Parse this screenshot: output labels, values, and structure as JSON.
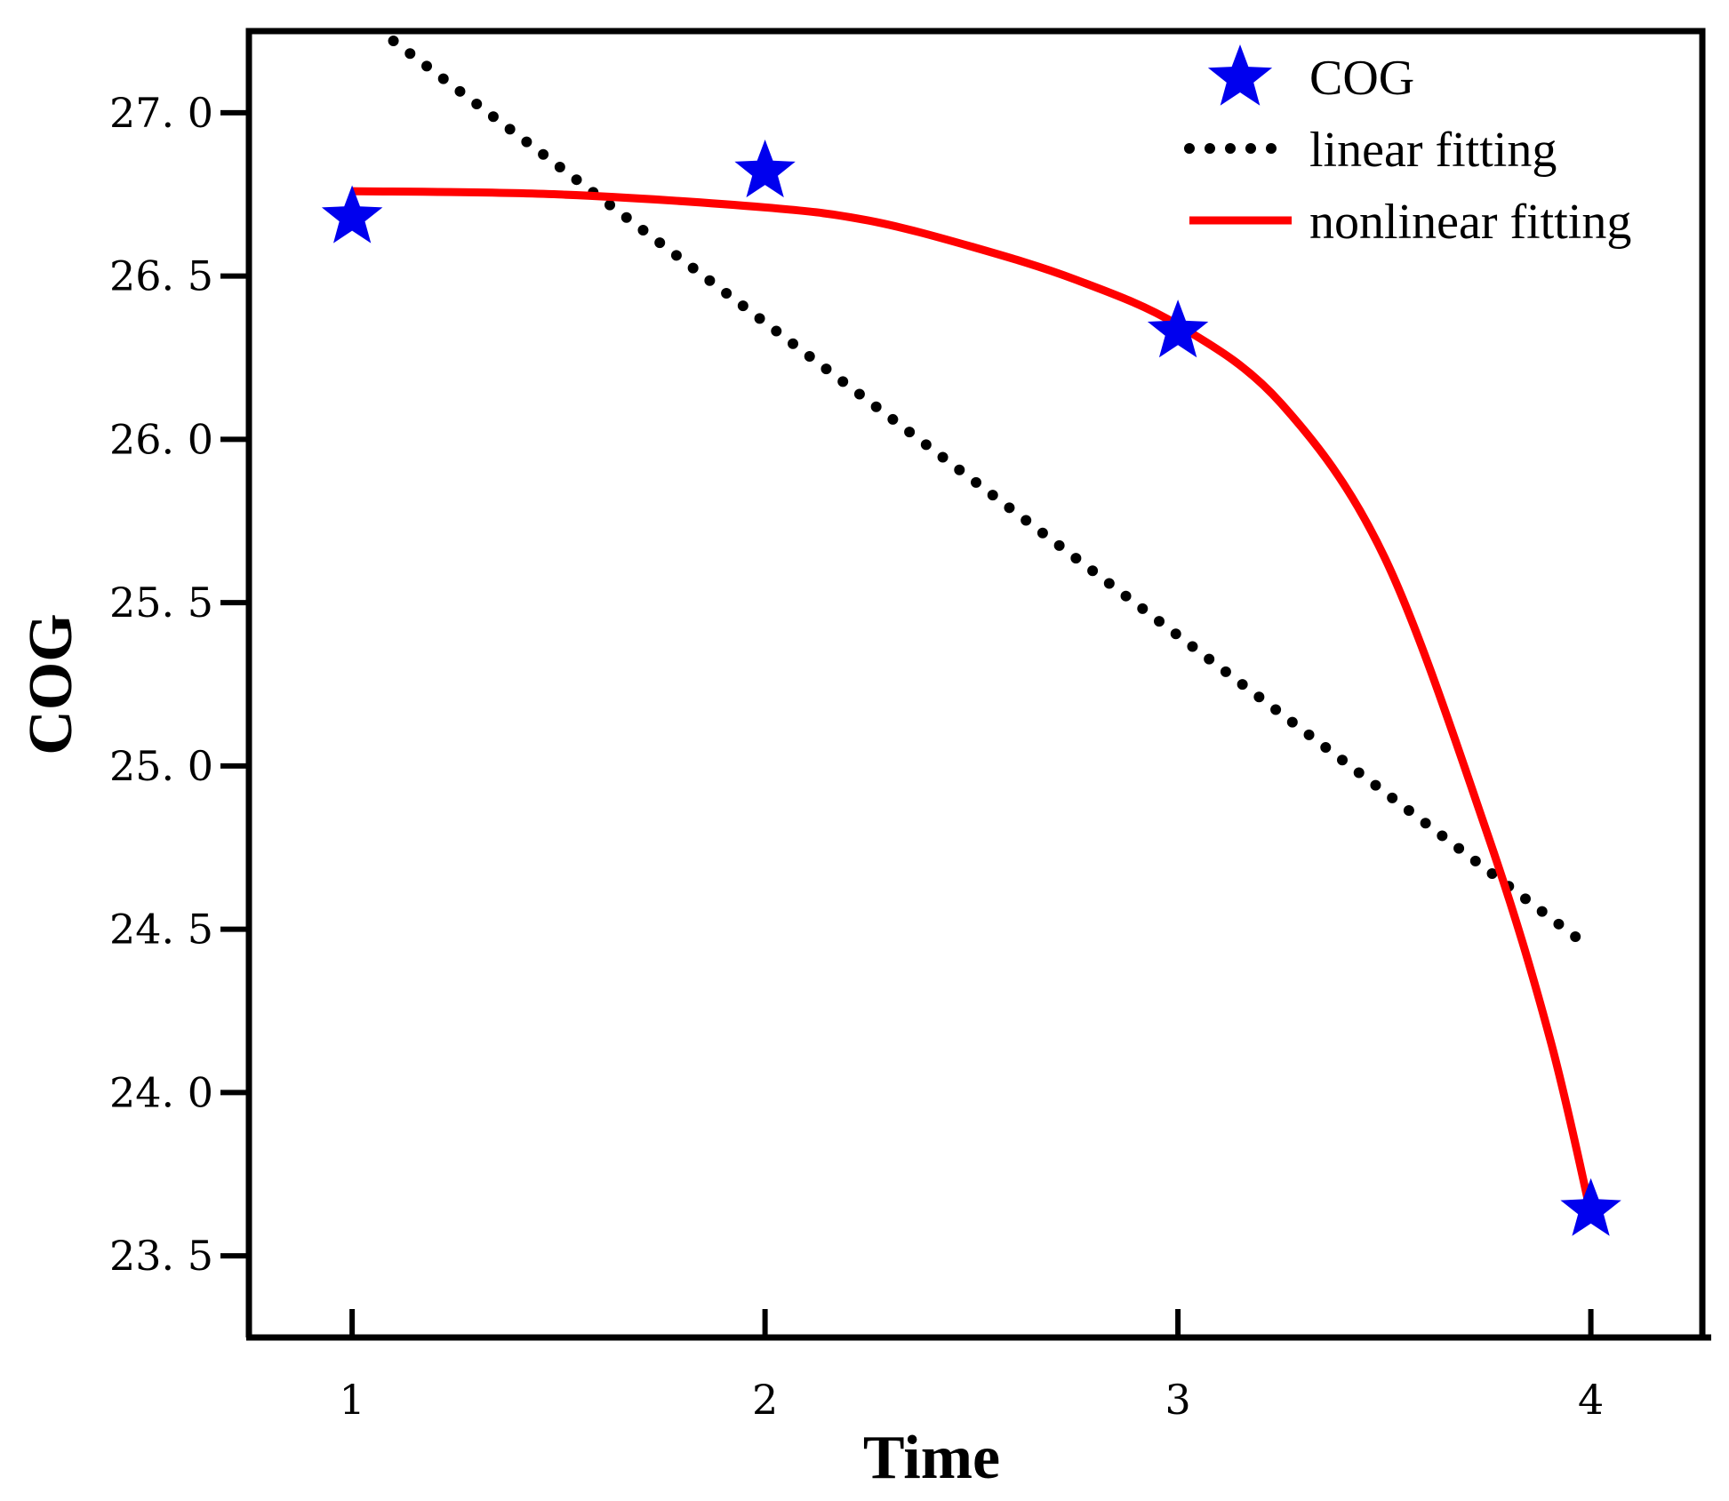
{
  "chart_data": {
    "type": "line",
    "title": "",
    "xlabel": "Time",
    "ylabel": "COG",
    "xlim": [
      0.75,
      4.27
    ],
    "ylim": [
      23.25,
      27.25
    ],
    "x_ticks": [
      1,
      2,
      3,
      4
    ],
    "x_tick_labels": [
      "1",
      "2",
      "3",
      "4"
    ],
    "y_ticks": [
      23.5,
      24.0,
      24.5,
      25.0,
      25.5,
      26.0,
      26.5,
      27.0
    ],
    "y_tick_labels": [
      "23. 5",
      "24. 0",
      "24. 5",
      "25. 0",
      "25. 5",
      "26. 0",
      "26. 5",
      "27. 0"
    ],
    "grid": false,
    "legend_position": "top-right",
    "series": [
      {
        "name": "COG",
        "style": "star-markers",
        "color": "#0000ee",
        "x": [
          1,
          2,
          3,
          4
        ],
        "y": [
          26.68,
          26.82,
          26.33,
          23.64
        ]
      },
      {
        "name": "linear fitting",
        "style": "dotted",
        "color": "#000000",
        "x": [
          1.1,
          3.97
        ],
        "y": [
          27.22,
          24.47
        ]
      },
      {
        "name": "nonlinear fitting",
        "style": "solid",
        "color": "#ff0000",
        "x": [
          1.0,
          1.5,
          2.0,
          2.25,
          2.5,
          2.75,
          3.0,
          3.25,
          3.5,
          3.75,
          3.9,
          4.0
        ],
        "y": [
          26.76,
          26.75,
          26.71,
          26.67,
          26.59,
          26.49,
          26.35,
          26.11,
          25.64,
          24.79,
          24.17,
          23.63
        ]
      }
    ]
  }
}
